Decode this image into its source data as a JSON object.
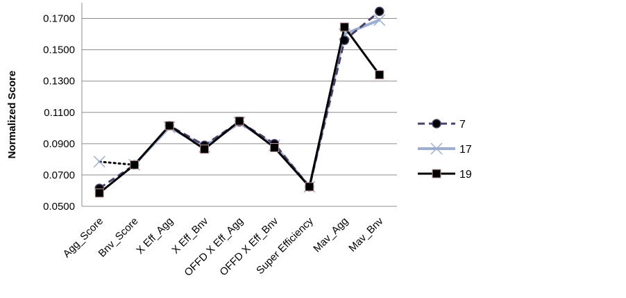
{
  "chart_data": {
    "type": "line",
    "title": "",
    "xlabel": "",
    "ylabel": "Normalized Score",
    "ylim": [
      0.05,
      0.18
    ],
    "yticks": [
      "0.0500",
      "0.0700",
      "0.0900",
      "0.1100",
      "0.1300",
      "0.1500",
      "0.1700"
    ],
    "yticks_values": [
      0.05,
      0.07,
      0.09,
      0.11,
      0.13,
      0.15,
      0.17
    ],
    "categories": [
      "Agg_Score",
      "Bnv_Score",
      "X Eff_Agg",
      "X Eff_Bnv",
      "OFFD X Eff_Agg",
      "OFFD X Eff_Bnv",
      "Super Efficiency",
      "Mav_Agg",
      "Mav_Bnv"
    ],
    "grid": true,
    "legend_position": "right",
    "series": [
      {
        "name": "7",
        "values": [
          0.0615,
          0.0765,
          0.1015,
          0.089,
          0.104,
          0.09,
          0.0625,
          0.156,
          0.1745
        ],
        "color": "#4b3f6b",
        "style": "dashed",
        "marker": "circle"
      },
      {
        "name": "17",
        "values": [
          0.0785,
          0.0765,
          0.1005,
          0.088,
          0.1035,
          0.089,
          0.0625,
          0.16,
          0.169
        ],
        "color": "#9aaed6",
        "style": "solid",
        "marker": "x"
      },
      {
        "name": "19",
        "values": [
          0.0585,
          0.0765,
          0.1015,
          0.0865,
          0.1045,
          0.0875,
          0.0625,
          0.1645,
          0.134
        ],
        "color": "#000000",
        "style": "solid",
        "marker": "square"
      }
    ],
    "annotations": [
      {
        "type": "dotted-connector",
        "from_series": "17",
        "category_from": "Agg_Score",
        "to_category": "Bnv_Score"
      }
    ]
  }
}
